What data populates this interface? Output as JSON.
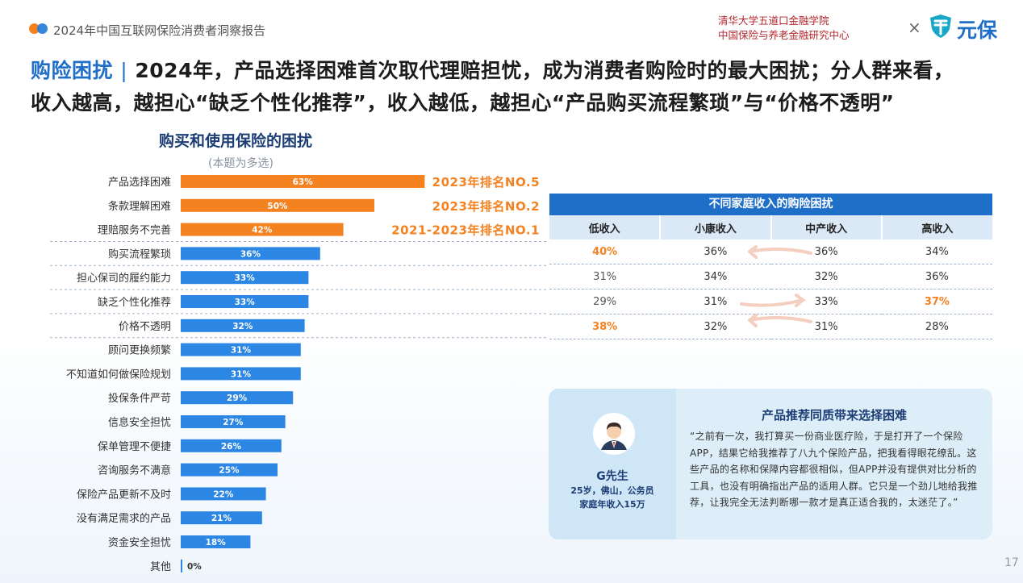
{
  "header": {
    "report_title": "2024年中国互联网保险消费者洞察报告",
    "institution_line1": "清华大学五道口金融学院",
    "institution_line2": "中国保险与养老金融研究中心",
    "times_symbol": "×",
    "logo_text": "元保"
  },
  "headline": {
    "keyword": "购险困扰",
    "separator": "|",
    "line1_rest": "2024年，产品选择困难首次取代理赔担忧，成为消费者购险时的最大困扰；分人群来看，",
    "line2": "收入越高，越担心“缺乏个性化推荐”，收入越低，越担心“产品购买流程繁琐”与“价格不透明”"
  },
  "chart_data": {
    "type": "bar",
    "orientation": "horizontal",
    "title": "购买和使用保险的困扰",
    "subtitle": "(本题为多选)",
    "unit": "%",
    "categories": [
      "产品选择困难",
      "条款理解困难",
      "理赔服务不完善",
      "购买流程繁琐",
      "担心保司的履约能力",
      "缺乏个性化推荐",
      "价格不透明",
      "顾问更换频繁",
      "不知道如何做保险规划",
      "投保条件严苛",
      "信息安全担忧",
      "保单管理不便捷",
      "咨询服务不满意",
      "保险产品更新不及时",
      "没有满足需求的产品",
      "资金安全担忧",
      "其他"
    ],
    "values": [
      63,
      50,
      42,
      36,
      33,
      33,
      32,
      31,
      31,
      29,
      27,
      26,
      25,
      22,
      21,
      18,
      0
    ],
    "value_labels": [
      "63%",
      "50%",
      "42%",
      "36%",
      "33%",
      "33%",
      "32%",
      "31%",
      "31%",
      "29%",
      "27%",
      "26%",
      "25%",
      "22%",
      "21%",
      "18%",
      "0%"
    ],
    "highlight_count": 3,
    "colors": {
      "highlight": "#f58220",
      "normal": "#2c86e4"
    },
    "rank_annotations": [
      "2023年排名NO.5",
      "2023年排名NO.2",
      "2021-2023年排名NO.1"
    ]
  },
  "income_table": {
    "title": "不同家庭收入的购险困扰",
    "columns": [
      "低收入",
      "小康收入",
      "中产收入",
      "高收入"
    ],
    "rows": [
      {
        "cells": [
          "40%",
          "36%",
          "36%",
          "34%"
        ],
        "highlight": [
          0
        ]
      },
      {
        "cells": [
          "31%",
          "34%",
          "32%",
          "36%"
        ],
        "highlight": []
      },
      {
        "cells": [
          "29%",
          "31%",
          "33%",
          "37%"
        ],
        "highlight": [
          3
        ]
      },
      {
        "cells": [
          "38%",
          "32%",
          "31%",
          "28%"
        ],
        "highlight": [
          0
        ]
      }
    ]
  },
  "quote_card": {
    "title": "产品推荐同质带来选择困难",
    "person_name": "G先生",
    "person_line1": "25岁，佛山，公务员",
    "person_line2": "家庭年收入15万",
    "quote": "“之前有一次，我打算买一份商业医疗险，于是打开了一个保险APP，结果它给我推荐了八九个保险产品，把我看得眼花缭乱。这些产品的名称和保障内容都很相似，但APP并没有提供对比分析的工具，也没有明确指出产品的适用人群。它只是一个劲儿地给我推荐，让我完全无法判断哪一款才是真正适合我的，太迷茫了。”"
  },
  "page_number": "17"
}
